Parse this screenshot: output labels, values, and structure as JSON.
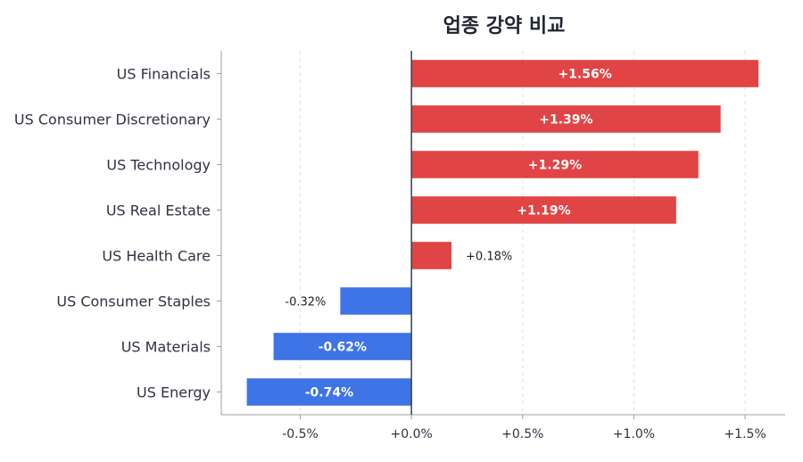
{
  "chart_data": {
    "type": "bar",
    "orientation": "horizontal",
    "title": "업종 강약 비교",
    "xlabel": "",
    "ylabel": "",
    "categories": [
      "US Financials",
      "US Consumer Discretionary",
      "US Technology",
      "US Real Estate",
      "US Health Care",
      "US Consumer Staples",
      "US Materials",
      "US Energy"
    ],
    "values": [
      1.56,
      1.39,
      1.29,
      1.19,
      0.18,
      -0.32,
      -0.62,
      -0.74
    ],
    "value_labels": [
      "+1.56%",
      "+1.39%",
      "+1.29%",
      "+1.19%",
      "+0.18%",
      "-0.32%",
      "-0.62%",
      "-0.74%"
    ],
    "xlim": [
      -0.855,
      1.68
    ],
    "xticks": [
      -0.5,
      0.0,
      0.5,
      1.0,
      1.5
    ],
    "xtick_labels": [
      "-0.5%",
      "+0.0%",
      "+0.5%",
      "+1.0%",
      "+1.5%"
    ],
    "grid": "vertical-dashed",
    "colors": {
      "positive": "#e04444",
      "negative": "#3f74e6",
      "zero_line": "#3a3f4a",
      "grid": "#dedede",
      "axis": "#9aa0a6"
    }
  }
}
